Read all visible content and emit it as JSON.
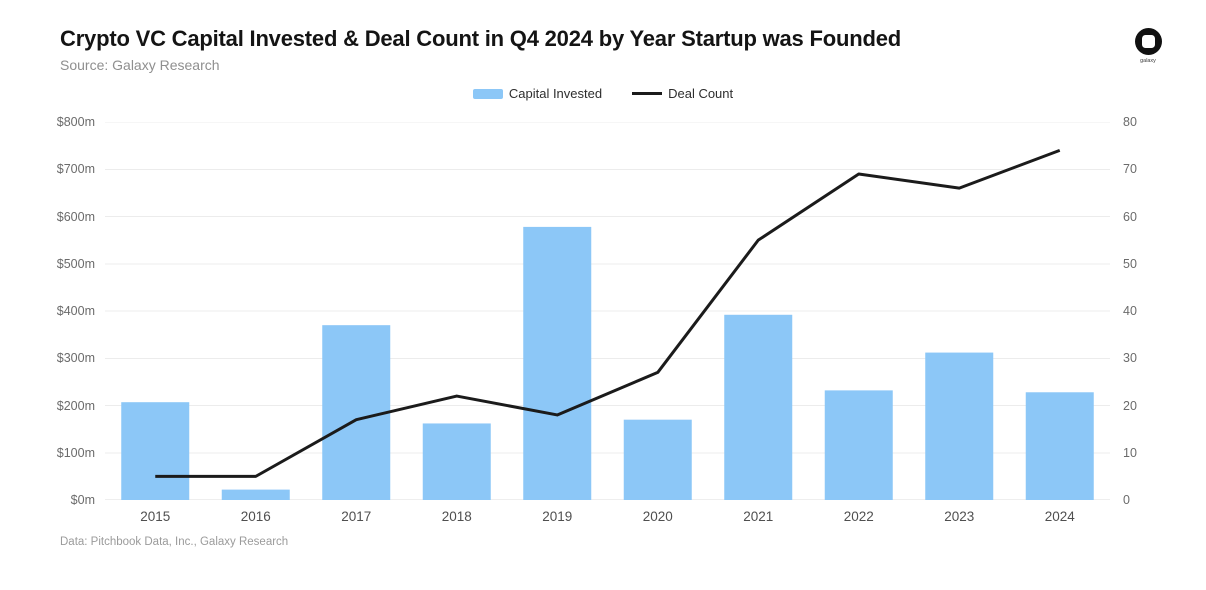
{
  "header": {
    "title": "Crypto VC Capital Invested & Deal Count in Q4 2024 by Year Startup was Founded",
    "source": "Source: Galaxy Research",
    "logo_text": "galaxy"
  },
  "legend": [
    {
      "label": "Capital Invested",
      "type": "bar",
      "color": "#8CC7F7"
    },
    {
      "label": "Deal Count",
      "type": "line",
      "color": "#1b1b1b"
    }
  ],
  "chart_data": {
    "type": "bar+line",
    "title": "Crypto VC Capital Invested & Deal Count in Q4 2024 by Year Startup was Founded",
    "categories": [
      "2015",
      "2016",
      "2017",
      "2018",
      "2019",
      "2020",
      "2021",
      "2022",
      "2023",
      "2024"
    ],
    "series": [
      {
        "name": "Capital Invested",
        "type": "bar",
        "axis": "left",
        "unit": "$m",
        "color": "#8CC7F7",
        "values": [
          207,
          22,
          370,
          162,
          578,
          170,
          392,
          232,
          312,
          228
        ]
      },
      {
        "name": "Deal Count",
        "type": "line",
        "axis": "right",
        "unit": "deals",
        "color": "#1b1b1b",
        "values": [
          5,
          5,
          17,
          22,
          18,
          27,
          55,
          69,
          66,
          74
        ]
      }
    ],
    "left_axis": {
      "label": "",
      "min": 0,
      "max": 800,
      "ticks": [
        "$800m",
        "$700m",
        "$600m",
        "$500m",
        "$400m",
        "$300m",
        "$200m",
        "$100m",
        "$0m"
      ]
    },
    "right_axis": {
      "label": "",
      "min": 0,
      "max": 80,
      "ticks": [
        "80",
        "70",
        "60",
        "50",
        "40",
        "30",
        "20",
        "10",
        "0"
      ]
    },
    "grid": true,
    "grid_color": "#ececec",
    "baseline_color": "#dedede",
    "legend_position": "top-center"
  },
  "footer": {
    "note": "Data: Pitchbook Data, Inc., Galaxy Research"
  }
}
